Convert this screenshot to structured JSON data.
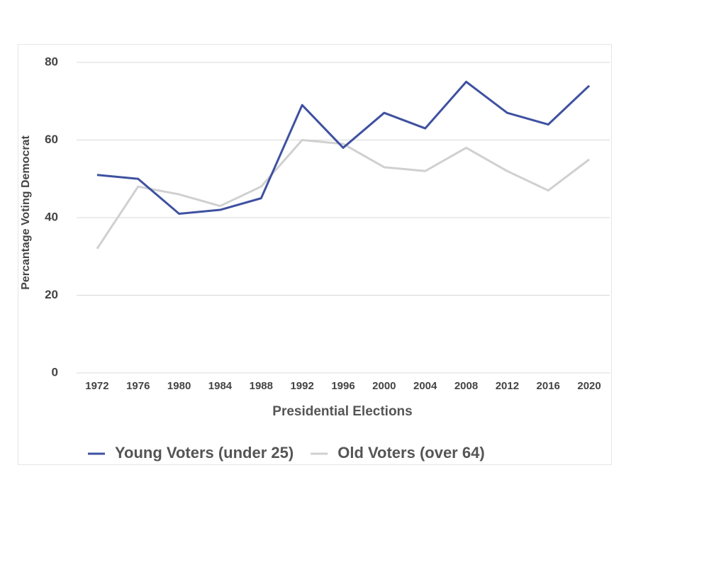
{
  "chart_data": {
    "type": "line",
    "x_label": "Presidential Elections",
    "y_label": "Percantage Voting Democrat",
    "categories": [
      "1972",
      "1976",
      "1980",
      "1984",
      "1988",
      "1992",
      "1996",
      "2000",
      "2004",
      "2008",
      "2012",
      "2016",
      "2020"
    ],
    "series": [
      {
        "name": "Young Voters (under 25)",
        "color": "#3f51a0",
        "values": [
          51,
          50,
          41,
          42,
          45,
          69,
          58,
          67,
          63,
          75,
          67,
          64,
          74
        ]
      },
      {
        "name": "Old Voters (over 64)",
        "color": "#d0d0d0",
        "values": [
          32,
          48,
          46,
          43,
          48,
          60,
          59,
          53,
          52,
          58,
          52,
          47,
          55
        ]
      }
    ],
    "ylim": [
      0,
      80
    ],
    "yticks": [
      0,
      20,
      40,
      60,
      80
    ],
    "grid": true,
    "legend": "bottom"
  }
}
